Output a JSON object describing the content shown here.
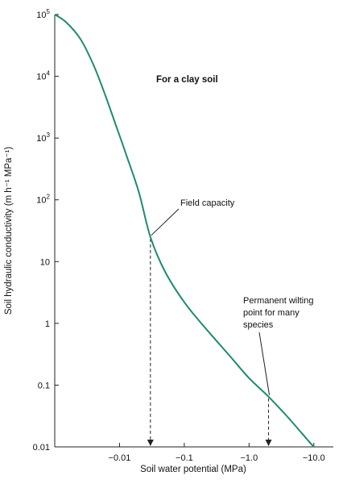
{
  "chart_data": {
    "type": "line",
    "title": "For a clay soil",
    "xlabel": "Soil water potential (MPa)",
    "ylabel": "Soil hydraulic conductivity (m h⁻¹ MPa⁻¹)",
    "x_scale": "log-negative",
    "y_scale": "log",
    "xlim": [
      -0.001,
      -20
    ],
    "ylim": [
      0.01,
      100000
    ],
    "x_ticks": [
      {
        "value": -0.01,
        "label": "−0.01"
      },
      {
        "value": -0.1,
        "label": "−0.1"
      },
      {
        "value": -1.0,
        "label": "−1.0"
      },
      {
        "value": -10.0,
        "label": "−10.0"
      }
    ],
    "y_ticks": [
      {
        "value": 0.01,
        "base": "0.01",
        "exp": ""
      },
      {
        "value": 0.1,
        "base": "0.1",
        "exp": ""
      },
      {
        "value": 1,
        "base": "1",
        "exp": ""
      },
      {
        "value": 10,
        "base": "10",
        "exp": ""
      },
      {
        "value": 100,
        "base": "10",
        "exp": "2"
      },
      {
        "value": 1000,
        "base": "10",
        "exp": "3"
      },
      {
        "value": 10000,
        "base": "10",
        "exp": "4"
      },
      {
        "value": 100000,
        "base": "10",
        "exp": "5"
      }
    ],
    "series": [
      {
        "color": "#1f8a70",
        "points": [
          {
            "x": -0.001,
            "y": 100000
          },
          {
            "x": -0.0015,
            "y": 75000
          },
          {
            "x": -0.0025,
            "y": 40000
          },
          {
            "x": -0.004,
            "y": 15000
          },
          {
            "x": -0.006,
            "y": 5000
          },
          {
            "x": -0.009,
            "y": 1500
          },
          {
            "x": -0.013,
            "y": 500
          },
          {
            "x": -0.02,
            "y": 130
          },
          {
            "x": -0.03,
            "y": 25
          },
          {
            "x": -0.05,
            "y": 7
          },
          {
            "x": -0.1,
            "y": 2.2
          },
          {
            "x": -0.2,
            "y": 0.9
          },
          {
            "x": -0.5,
            "y": 0.3
          },
          {
            "x": -1.0,
            "y": 0.13
          },
          {
            "x": -2.0,
            "y": 0.065
          },
          {
            "x": -4.0,
            "y": 0.03
          },
          {
            "x": -8.0,
            "y": 0.013
          },
          {
            "x": -10.0,
            "y": 0.01
          }
        ]
      }
    ],
    "annotations": [
      {
        "lines": [
          "Field capacity"
        ],
        "x": -0.03,
        "y": 25
      },
      {
        "lines": [
          "Permanent wilting",
          "point for many",
          "species"
        ],
        "x": -2.0,
        "y": 0.065
      }
    ]
  }
}
